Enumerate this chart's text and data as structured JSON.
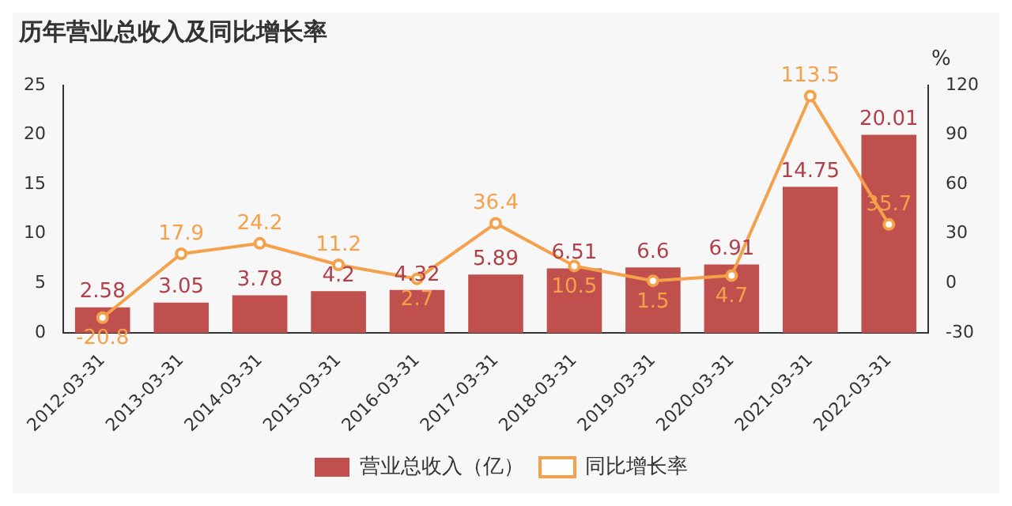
{
  "chart_data": {
    "type": "bar",
    "title": "历年营业总收入及同比增长率",
    "y2label": "%",
    "categories": [
      "2012-03-31",
      "2013-03-31",
      "2014-03-31",
      "2015-03-31",
      "2016-03-31",
      "2017-03-31",
      "2018-03-31",
      "2019-03-31",
      "2020-03-31",
      "2021-03-31",
      "2022-03-31"
    ],
    "series": [
      {
        "name": "营业总收入（亿）",
        "color": "#c0504d",
        "values": [
          2.58,
          3.05,
          3.78,
          4.2,
          4.32,
          5.89,
          6.51,
          6.6,
          6.91,
          14.75,
          20.01
        ]
      },
      {
        "name": "同比增长率",
        "type": "line",
        "axis": "y2",
        "color": "#f5a04a",
        "marker": "circle",
        "values": [
          -20.8,
          17.9,
          24.2,
          11.2,
          2.7,
          36.4,
          10.5,
          1.5,
          4.7,
          113.5,
          35.7
        ]
      }
    ],
    "ylim": [
      0,
      25
    ],
    "yticks": [
      0,
      5,
      10,
      15,
      20,
      25
    ],
    "y2lim": [
      -30,
      120
    ],
    "y2ticks": [
      -30,
      0,
      30,
      60,
      90,
      120
    ],
    "grid": false,
    "legend": "bottom",
    "data_labels": true
  }
}
